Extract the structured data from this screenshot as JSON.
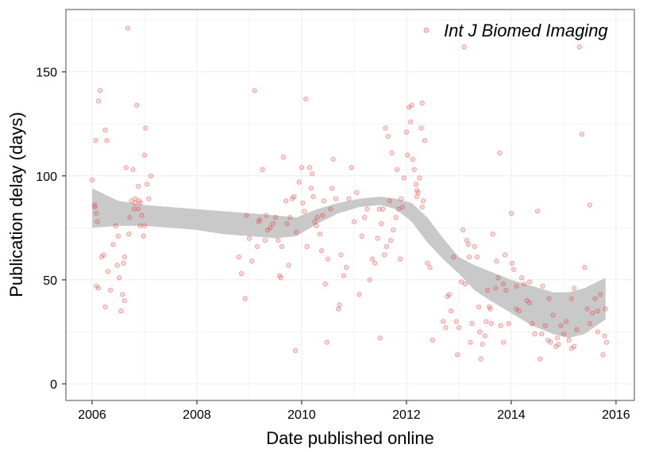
{
  "chart_data": {
    "type": "scatter",
    "title": "",
    "xlabel": "Date published online",
    "ylabel": "Publication delay (days)",
    "xlim": [
      2005.5,
      2016.35
    ],
    "ylim": [
      -8,
      180
    ],
    "x_ticks": [
      2006,
      2008,
      2010,
      2012,
      2014,
      2016
    ],
    "y_ticks": [
      0,
      50,
      100,
      150
    ],
    "grid": true,
    "legend_position": "top-right",
    "colors": {
      "points": "#e8413e",
      "ribbon": "#c9c9c9",
      "grid": "#ececec",
      "panel_border": "#7f7f7f",
      "axis_ticks": "#333333"
    },
    "series": [
      {
        "name": "Int J Biomed Imaging",
        "points": [
          [
            2006.0,
            98
          ],
          [
            2006.05,
            86
          ],
          [
            2006.05,
            85
          ],
          [
            2006.07,
            117
          ],
          [
            2006.08,
            82
          ],
          [
            2006.1,
            78
          ],
          [
            2006.12,
            136
          ],
          [
            2006.15,
            141
          ],
          [
            2006.12,
            46
          ],
          [
            2006.08,
            47
          ],
          [
            2006.18,
            61
          ],
          [
            2006.22,
            62
          ],
          [
            2006.25,
            122
          ],
          [
            2006.28,
            117
          ],
          [
            2006.3,
            54
          ],
          [
            2006.25,
            37
          ],
          [
            2006.35,
            45
          ],
          [
            2006.4,
            67
          ],
          [
            2006.45,
            76
          ],
          [
            2006.48,
            57
          ],
          [
            2006.5,
            71
          ],
          [
            2006.52,
            51
          ],
          [
            2006.55,
            35
          ],
          [
            2006.58,
            43
          ],
          [
            2006.6,
            58
          ],
          [
            2006.65,
            104
          ],
          [
            2006.68,
            171
          ],
          [
            2006.7,
            72
          ],
          [
            2006.72,
            80
          ],
          [
            2006.75,
            88
          ],
          [
            2006.78,
            103
          ],
          [
            2006.8,
            84
          ],
          [
            2006.82,
            87
          ],
          [
            2006.85,
            134
          ],
          [
            2006.88,
            95
          ],
          [
            2006.88,
            84
          ],
          [
            2006.9,
            88
          ],
          [
            2006.92,
            76
          ],
          [
            2006.95,
            81
          ],
          [
            2006.98,
            71
          ],
          [
            2007.0,
            110
          ],
          [
            2007.02,
            123
          ],
          [
            2007.05,
            96
          ],
          [
            2007.08,
            89
          ],
          [
            2007.12,
            100
          ],
          [
            2006.62,
            40
          ],
          [
            2006.62,
            61
          ],
          [
            2006.82,
            89
          ],
          [
            2006.92,
            87
          ],
          [
            2007.0,
            76
          ],
          [
            2008.8,
            61
          ],
          [
            2008.85,
            53
          ],
          [
            2008.92,
            41
          ],
          [
            2008.95,
            81
          ],
          [
            2009.0,
            70
          ],
          [
            2009.05,
            59
          ],
          [
            2009.1,
            141
          ],
          [
            2009.15,
            66
          ],
          [
            2009.18,
            78
          ],
          [
            2009.2,
            79
          ],
          [
            2009.25,
            103
          ],
          [
            2009.3,
            69
          ],
          [
            2009.32,
            81
          ],
          [
            2009.35,
            74
          ],
          [
            2009.4,
            75
          ],
          [
            2009.45,
            77
          ],
          [
            2009.5,
            80
          ],
          [
            2009.55,
            69
          ],
          [
            2009.58,
            52
          ],
          [
            2009.6,
            51
          ],
          [
            2009.62,
            66
          ],
          [
            2009.65,
            109
          ],
          [
            2009.7,
            88
          ],
          [
            2009.72,
            77
          ],
          [
            2009.75,
            57
          ],
          [
            2009.78,
            80
          ],
          [
            2009.82,
            89
          ],
          [
            2009.85,
            90
          ],
          [
            2009.88,
            16
          ],
          [
            2009.9,
            73
          ],
          [
            2009.95,
            97
          ],
          [
            2010.0,
            104
          ],
          [
            2010.02,
            87
          ],
          [
            2010.05,
            83
          ],
          [
            2010.08,
            137
          ],
          [
            2010.1,
            66
          ],
          [
            2010.15,
            104
          ],
          [
            2010.18,
            94
          ],
          [
            2010.2,
            101
          ],
          [
            2010.22,
            90
          ],
          [
            2010.25,
            78
          ],
          [
            2010.28,
            76
          ],
          [
            2010.3,
            80
          ],
          [
            2010.35,
            72
          ],
          [
            2010.38,
            64
          ],
          [
            2010.4,
            81
          ],
          [
            2010.42,
            88
          ],
          [
            2010.45,
            48
          ],
          [
            2010.48,
            20
          ],
          [
            2010.5,
            60
          ],
          [
            2010.55,
            84
          ],
          [
            2010.58,
            94
          ],
          [
            2010.6,
            108
          ],
          [
            2010.65,
            89
          ],
          [
            2010.7,
            36
          ],
          [
            2010.72,
            38
          ],
          [
            2010.75,
            62
          ],
          [
            2010.8,
            52
          ],
          [
            2010.85,
            56
          ],
          [
            2010.9,
            89
          ],
          [
            2010.95,
            104
          ],
          [
            2011.0,
            78
          ],
          [
            2011.05,
            92
          ],
          [
            2011.1,
            43
          ],
          [
            2011.15,
            71
          ],
          [
            2011.2,
            80
          ],
          [
            2011.25,
            84
          ],
          [
            2011.3,
            50
          ],
          [
            2011.35,
            60
          ],
          [
            2011.4,
            58
          ],
          [
            2011.45,
            70
          ],
          [
            2011.48,
            84
          ],
          [
            2011.5,
            22
          ],
          [
            2011.52,
            77
          ],
          [
            2011.55,
            84
          ],
          [
            2011.58,
            62
          ],
          [
            2011.6,
            123
          ],
          [
            2011.62,
            66
          ],
          [
            2011.65,
            119
          ],
          [
            2011.68,
            88
          ],
          [
            2011.7,
            69
          ],
          [
            2011.72,
            111
          ],
          [
            2011.75,
            74
          ],
          [
            2011.8,
            80
          ],
          [
            2011.82,
            103
          ],
          [
            2011.85,
            84
          ],
          [
            2011.88,
            60
          ],
          [
            2011.9,
            89
          ],
          [
            2011.92,
            85
          ],
          [
            2011.95,
            99
          ],
          [
            2012.0,
            121
          ],
          [
            2012.02,
            110
          ],
          [
            2012.05,
            133
          ],
          [
            2012.08,
            126
          ],
          [
            2012.1,
            134
          ],
          [
            2012.12,
            108
          ],
          [
            2012.15,
            103
          ],
          [
            2012.18,
            96
          ],
          [
            2012.2,
            93
          ],
          [
            2012.22,
            92
          ],
          [
            2012.25,
            99
          ],
          [
            2012.28,
            123
          ],
          [
            2012.3,
            135
          ],
          [
            2012.32,
            88
          ],
          [
            2012.35,
            117
          ],
          [
            2012.4,
            58
          ],
          [
            2012.45,
            56
          ],
          [
            2012.5,
            21
          ],
          [
            2012.3,
            85
          ],
          [
            2012.2,
            90
          ],
          [
            2012.7,
            30
          ],
          [
            2012.75,
            27
          ],
          [
            2012.78,
            42
          ],
          [
            2012.82,
            43
          ],
          [
            2012.85,
            35
          ],
          [
            2012.9,
            61
          ],
          [
            2012.95,
            30
          ],
          [
            2012.97,
            14
          ],
          [
            2013.0,
            27
          ],
          [
            2013.05,
            49
          ],
          [
            2013.08,
            74
          ],
          [
            2013.1,
            162
          ],
          [
            2013.12,
            48
          ],
          [
            2013.15,
            69
          ],
          [
            2013.18,
            67
          ],
          [
            2013.2,
            61
          ],
          [
            2013.22,
            20
          ],
          [
            2013.25,
            29
          ],
          [
            2013.3,
            66
          ],
          [
            2013.35,
            61
          ],
          [
            2013.38,
            37
          ],
          [
            2013.4,
            25
          ],
          [
            2013.42,
            12
          ],
          [
            2013.45,
            19
          ],
          [
            2013.5,
            23
          ],
          [
            2013.52,
            30
          ],
          [
            2013.55,
            45
          ],
          [
            2013.58,
            37
          ],
          [
            2013.6,
            36
          ],
          [
            2013.62,
            29
          ],
          [
            2013.65,
            72
          ],
          [
            2013.7,
            46
          ],
          [
            2013.72,
            59
          ],
          [
            2013.75,
            51
          ],
          [
            2013.78,
            111
          ],
          [
            2013.8,
            28
          ],
          [
            2013.85,
            48
          ],
          [
            2013.88,
            62
          ],
          [
            2013.9,
            45
          ],
          [
            2013.95,
            29
          ],
          [
            2014.0,
            82
          ],
          [
            2014.02,
            58
          ],
          [
            2014.05,
            55
          ],
          [
            2014.1,
            36
          ],
          [
            2014.15,
            35
          ],
          [
            2014.2,
            51
          ],
          [
            2014.25,
            48
          ],
          [
            2014.3,
            40
          ],
          [
            2014.35,
            39
          ],
          [
            2014.4,
            29
          ],
          [
            2014.45,
            24
          ],
          [
            2014.5,
            83
          ],
          [
            2014.55,
            12
          ],
          [
            2014.58,
            24
          ],
          [
            2014.6,
            47
          ],
          [
            2014.65,
            28
          ],
          [
            2014.7,
            21
          ],
          [
            2014.72,
            41
          ],
          [
            2014.75,
            20
          ],
          [
            2014.8,
            33
          ],
          [
            2014.85,
            18
          ],
          [
            2014.88,
            22
          ],
          [
            2014.9,
            19
          ],
          [
            2014.95,
            28
          ],
          [
            2015.0,
            24
          ],
          [
            2015.05,
            30
          ],
          [
            2015.1,
            21
          ],
          [
            2015.15,
            41
          ],
          [
            2015.2,
            18
          ],
          [
            2015.25,
            26
          ],
          [
            2015.3,
            162
          ],
          [
            2015.35,
            120
          ],
          [
            2015.4,
            56
          ],
          [
            2015.45,
            36
          ],
          [
            2015.5,
            86
          ],
          [
            2015.55,
            34
          ],
          [
            2015.6,
            41
          ],
          [
            2015.65,
            35
          ],
          [
            2015.7,
            43
          ],
          [
            2015.75,
            14
          ],
          [
            2015.78,
            23
          ],
          [
            2015.8,
            36
          ],
          [
            2015.82,
            20
          ],
          [
            2015.65,
            25
          ],
          [
            2015.5,
            29
          ],
          [
            2015.2,
            46
          ],
          [
            2015.15,
            17
          ],
          [
            2014.35,
            49
          ],
          [
            2014.1,
            47
          ],
          [
            2013.85,
            20
          ]
        ]
      }
    ],
    "smooth": {
      "x": [
        2006.0,
        2006.5,
        2007.0,
        2007.5,
        2008.0,
        2008.5,
        2009.0,
        2009.5,
        2009.9,
        2010.3,
        2010.7,
        2011.1,
        2011.5,
        2011.8,
        2012.1,
        2012.4,
        2012.7,
        2013.0,
        2013.3,
        2013.6,
        2014.0,
        2014.4,
        2014.8,
        2015.1,
        2015.4,
        2015.8
      ],
      "lower": [
        75,
        76,
        76,
        75,
        74,
        72,
        71,
        70,
        71,
        77,
        82,
        85,
        86,
        84,
        78,
        68,
        60,
        53,
        45,
        40,
        34,
        28,
        24,
        22,
        24,
        31
      ],
      "upper": [
        94,
        88,
        86,
        85,
        84,
        83,
        82,
        81,
        80,
        84,
        87,
        89,
        90,
        89,
        87,
        80,
        70,
        61,
        57,
        54,
        50,
        47,
        44,
        44,
        46,
        51
      ]
    }
  }
}
